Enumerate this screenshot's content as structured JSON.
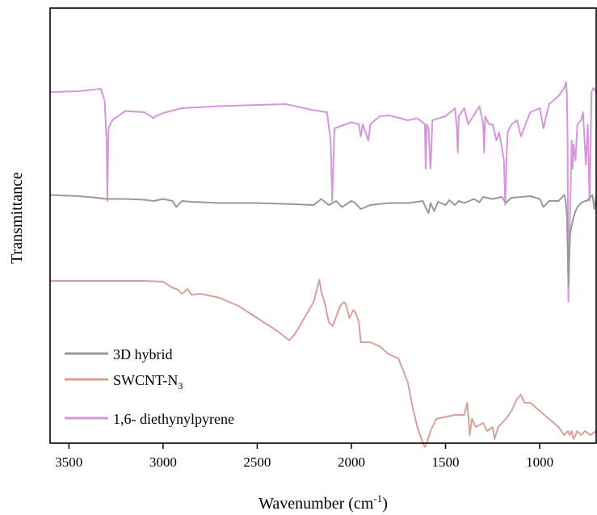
{
  "chart_data": {
    "type": "line",
    "title": "",
    "xlabel": "Wavenumber (cm",
    "xlabel_sup": "-1",
    "xlabel_close": ")",
    "ylabel": "Transmittance",
    "xlim": [
      3600,
      700
    ],
    "x_reversed": true,
    "x_ticks": [
      3500,
      3000,
      2500,
      2000,
      1500,
      1000
    ],
    "x_tick_labels": [
      "3500",
      "3000",
      "2500",
      "2000",
      "1500",
      "1000"
    ],
    "y_ticks_shown": false,
    "grid": false,
    "legend_position": "bottom-left",
    "series": [
      {
        "name": "1,6- diethynylpyrene",
        "color": "#d596dc",
        "x": [
          3600,
          3450,
          3330,
          3310,
          3300,
          3296,
          3290,
          3270,
          3200,
          3100,
          3050,
          3040,
          3000,
          2900,
          2700,
          2500,
          2350,
          2200,
          2130,
          2110,
          2102,
          2090,
          2000,
          1960,
          1950,
          1940,
          1910,
          1905,
          1900,
          1850,
          1800,
          1700,
          1650,
          1610,
          1605,
          1600,
          1590,
          1580,
          1575,
          1570,
          1500,
          1450,
          1440,
          1435,
          1430,
          1400,
          1380,
          1320,
          1300,
          1295,
          1290,
          1270,
          1250,
          1230,
          1215,
          1200,
          1190,
          1183,
          1175,
          1170,
          1150,
          1120,
          1100,
          1050,
          1000,
          980,
          950,
          900,
          870,
          860,
          856,
          852,
          848,
          840,
          830,
          825,
          820,
          810,
          800,
          780,
          770,
          755,
          745,
          735,
          725,
          715,
          700
        ],
        "y": [
          0.87,
          0.872,
          0.878,
          0.848,
          0.75,
          0.6,
          0.78,
          0.8,
          0.823,
          0.82,
          0.805,
          0.81,
          0.818,
          0.83,
          0.835,
          0.838,
          0.84,
          0.825,
          0.82,
          0.75,
          0.6,
          0.78,
          0.795,
          0.79,
          0.76,
          0.79,
          0.75,
          0.765,
          0.79,
          0.81,
          0.812,
          0.8,
          0.805,
          0.79,
          0.68,
          0.79,
          0.78,
          0.68,
          0.73,
          0.8,
          0.81,
          0.83,
          0.78,
          0.72,
          0.81,
          0.83,
          0.79,
          0.835,
          0.79,
          0.72,
          0.81,
          0.79,
          0.79,
          0.75,
          0.77,
          0.73,
          0.7,
          0.59,
          0.72,
          0.77,
          0.79,
          0.8,
          0.76,
          0.82,
          0.83,
          0.78,
          0.84,
          0.86,
          0.88,
          0.895,
          0.87,
          0.76,
          0.35,
          0.55,
          0.75,
          0.68,
          0.74,
          0.7,
          0.79,
          0.8,
          0.82,
          0.69,
          0.79,
          0.6,
          0.87,
          0.88,
          0.87
        ]
      },
      {
        "name": "3D hybrid",
        "color": "#999999",
        "x": [
          3600,
          3450,
          3350,
          3300,
          3200,
          3100,
          3050,
          3000,
          2950,
          2930,
          2900,
          2850,
          2700,
          2500,
          2300,
          2200,
          2160,
          2120,
          2080,
          2050,
          2000,
          1980,
          1950,
          1900,
          1800,
          1700,
          1650,
          1620,
          1600,
          1590,
          1580,
          1560,
          1540,
          1500,
          1480,
          1450,
          1430,
          1400,
          1350,
          1320,
          1300,
          1250,
          1200,
          1180,
          1150,
          1100,
          1050,
          1000,
          980,
          950,
          900,
          880,
          870,
          862,
          855,
          850,
          847,
          843,
          838,
          830,
          820,
          810,
          800,
          790,
          780,
          770,
          760,
          750,
          740,
          730,
          720,
          710,
          700
        ],
        "y": [
          0.615,
          0.612,
          0.608,
          0.605,
          0.605,
          0.603,
          0.6,
          0.605,
          0.6,
          0.585,
          0.6,
          0.598,
          0.595,
          0.595,
          0.592,
          0.59,
          0.605,
          0.59,
          0.6,
          0.585,
          0.6,
          0.595,
          0.58,
          0.59,
          0.595,
          0.595,
          0.598,
          0.6,
          0.578,
          0.57,
          0.595,
          0.575,
          0.598,
          0.59,
          0.602,
          0.59,
          0.6,
          0.595,
          0.605,
          0.597,
          0.61,
          0.605,
          0.61,
          0.595,
          0.608,
          0.61,
          0.612,
          0.605,
          0.585,
          0.6,
          0.6,
          0.61,
          0.615,
          0.6,
          0.56,
          0.45,
          0.39,
          0.46,
          0.52,
          0.54,
          0.56,
          0.575,
          0.585,
          0.59,
          0.595,
          0.598,
          0.6,
          0.6,
          0.605,
          0.61,
          0.615,
          0.58,
          0.612
        ]
      },
      {
        "name": "SWCNT-N3",
        "color": "#d9a09a",
        "x": [
          3600,
          3400,
          3200,
          3100,
          3000,
          2950,
          2920,
          2900,
          2870,
          2850,
          2800,
          2700,
          2600,
          2500,
          2400,
          2330,
          2300,
          2250,
          2200,
          2170,
          2160,
          2140,
          2120,
          2100,
          2060,
          2040,
          2030,
          2010,
          1990,
          1980,
          1960,
          1950,
          1900,
          1850,
          1800,
          1750,
          1700,
          1680,
          1650,
          1620,
          1610,
          1600,
          1580,
          1550,
          1500,
          1450,
          1400,
          1385,
          1378,
          1372,
          1360,
          1340,
          1300,
          1280,
          1250,
          1240,
          1220,
          1200,
          1180,
          1150,
          1120,
          1100,
          1080,
          1050,
          1000,
          950,
          900,
          870,
          850,
          840,
          830,
          820,
          810,
          800,
          780,
          760,
          730,
          700
        ],
        "y": [
          0.402,
          0.402,
          0.402,
          0.402,
          0.4,
          0.385,
          0.38,
          0.37,
          0.382,
          0.368,
          0.37,
          0.36,
          0.34,
          0.31,
          0.28,
          0.255,
          0.27,
          0.31,
          0.35,
          0.405,
          0.375,
          0.345,
          0.3,
          0.29,
          0.34,
          0.35,
          0.345,
          0.31,
          0.33,
          0.325,
          0.3,
          0.25,
          0.25,
          0.24,
          0.22,
          0.21,
          0.15,
          0.1,
          0.04,
          0.0,
          -0.01,
          0.0,
          0.03,
          0.06,
          0.065,
          0.07,
          0.07,
          0.1,
          0.06,
          0.02,
          0.06,
          0.04,
          0.05,
          0.03,
          0.04,
          0.01,
          0.04,
          0.05,
          0.06,
          0.08,
          0.11,
          0.12,
          0.1,
          0.1,
          0.08,
          0.06,
          0.04,
          0.02,
          0.03,
          0.02,
          0.03,
          0.01,
          0.02,
          0.03,
          0.02,
          0.03,
          0.02,
          0.03
        ]
      }
    ],
    "legend": [
      {
        "label": "3D hybrid",
        "sub": "",
        "color": "#999999"
      },
      {
        "label": "SWCNT-N",
        "sub": "3",
        "color": "#d9a09a"
      },
      {
        "label": "1,6- diethynylpyrene",
        "sub": "",
        "color": "#d596dc"
      }
    ]
  }
}
